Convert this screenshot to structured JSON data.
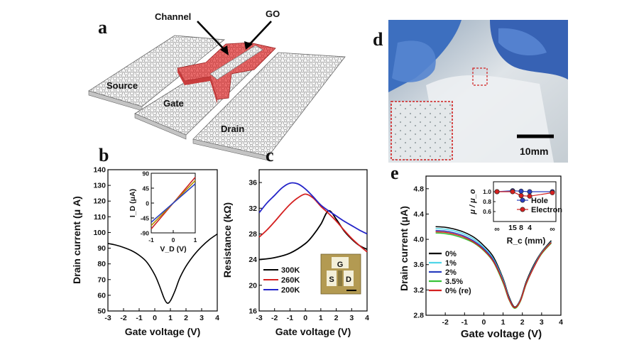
{
  "figure": {
    "panel_labels": [
      "a",
      "b",
      "c",
      "d",
      "e"
    ]
  },
  "panel_a": {
    "labels": {
      "channel": "Channel",
      "go": "GO",
      "source": "Source",
      "gate": "Gate",
      "drain": "Drain"
    },
    "colors": {
      "graphene": "#d8d8d8",
      "go": "#e05a5a"
    }
  },
  "panel_d": {
    "scale_bar": "10mm",
    "colors": {
      "glove": "#3a6fc0",
      "inset_border": "#d02020"
    }
  },
  "chart_data": [
    {
      "id": "b",
      "type": "line",
      "xlabel": "Gate voltage (V)",
      "ylabel": "Drain current (μ A)",
      "xlim": [
        -3,
        4
      ],
      "ylim": [
        50,
        140
      ],
      "xticks": [
        -3,
        -2,
        -1,
        0,
        1,
        2,
        3,
        4
      ],
      "yticks": [
        50,
        60,
        70,
        80,
        90,
        100,
        110,
        120,
        130,
        140
      ],
      "series": [
        {
          "color": "#000000",
          "x": [
            -3,
            -2.5,
            -2,
            -1.5,
            -1,
            -0.5,
            0,
            0.3,
            0.6,
            0.8,
            1.0,
            1.3,
            1.6,
            2,
            2.5,
            3,
            3.5,
            4
          ],
          "y": [
            93,
            92,
            90.5,
            88.5,
            85.5,
            81,
            73,
            66,
            58,
            55,
            56.5,
            63,
            71,
            78.5,
            85.5,
            91,
            95.5,
            99
          ]
        }
      ],
      "inset": {
        "xlabel": "V_D (V)",
        "ylabel": "I_D (μA)",
        "xlim": [
          -1,
          1
        ],
        "ylim": [
          -90,
          90
        ],
        "xticks": [
          -1,
          0,
          1
        ],
        "yticks": [
          -90,
          -45,
          0,
          45,
          90
        ],
        "ytick_labels": [
          "-90",
          "-45",
          "0",
          "45",
          "90"
        ],
        "series": [
          {
            "color": "#cc2222",
            "x": [
              -1,
              1
            ],
            "y": [
              -78,
              78
            ]
          },
          {
            "color": "#b38f00",
            "x": [
              -1,
              1
            ],
            "y": [
              -68,
              68
            ]
          },
          {
            "color": "#2a3fbf",
            "x": [
              -1,
              1
            ],
            "y": [
              -58,
              58
            ]
          }
        ]
      }
    },
    {
      "id": "c",
      "type": "line",
      "xlabel": "Gate voltage (V)",
      "ylabel": "Resistance (kΩ)",
      "xlim": [
        -3,
        4
      ],
      "ylim": [
        16,
        38
      ],
      "xticks": [
        -3,
        -2,
        -1,
        0,
        1,
        2,
        3,
        4
      ],
      "yticks": [
        16,
        20,
        24,
        28,
        32,
        36
      ],
      "legend_position": "bottom-left",
      "series": [
        {
          "name": "300K",
          "color": "#000000",
          "x": [
            -3,
            -2,
            -1,
            0,
            0.5,
            1,
            1.5,
            2,
            2.5,
            3,
            3.5,
            4
          ],
          "y": [
            24,
            24.3,
            25,
            26.5,
            27.8,
            29.5,
            31.6,
            30.3,
            28.5,
            27.2,
            26.2,
            25.6
          ]
        },
        {
          "name": "260K",
          "color": "#d42020",
          "x": [
            -3,
            -2.5,
            -2,
            -1.5,
            -1,
            -0.5,
            0,
            0.5,
            1,
            1.5,
            2,
            2.5,
            3,
            3.5,
            4
          ],
          "y": [
            27.5,
            28.6,
            29.9,
            31.3,
            32.6,
            33.6,
            34.2,
            33.6,
            32.3,
            31.2,
            30.0,
            28.6,
            27.3,
            26.2,
            25.2
          ]
        },
        {
          "name": "200K",
          "color": "#2424c8",
          "x": [
            -3,
            -2.5,
            -2,
            -1.5,
            -1,
            -0.5,
            0,
            0.5,
            1,
            1.5,
            2,
            2.5,
            3,
            3.5,
            4
          ],
          "y": [
            31.3,
            32.8,
            34.0,
            35.2,
            35.9,
            35.8,
            35.0,
            33.8,
            32.5,
            31.6,
            30.8,
            30.0,
            29.3,
            28.6,
            28.0
          ]
        }
      ],
      "inset_photo": {
        "labels": [
          "G",
          "S",
          "D"
        ],
        "colors": {
          "chip": "#b39a52",
          "pad": "#f3efd8"
        }
      }
    },
    {
      "id": "e",
      "type": "line",
      "xlabel": "Gate voltage (V)",
      "ylabel": "Drain current (μA)",
      "xlim": [
        -3,
        4
      ],
      "ylim": [
        2.8,
        5.0
      ],
      "xticks": [
        -2,
        -1,
        0,
        1,
        2,
        3,
        4
      ],
      "yticks": [
        2.8,
        3.2,
        3.6,
        4.0,
        4.4,
        4.8
      ],
      "ytick_labels": [
        "2.8",
        "3.2",
        "3.6",
        "4.0",
        "4.4",
        "4.8"
      ],
      "legend_position": "bottom-left",
      "series": [
        {
          "name": "0%",
          "color": "#000000",
          "x": [
            -2.5,
            -2,
            -1.5,
            -1,
            -0.5,
            0,
            0.5,
            1,
            1.3,
            1.6,
            1.9,
            2.2,
            2.6,
            3,
            3.5
          ],
          "y": [
            4.2,
            4.19,
            4.16,
            4.11,
            4.03,
            3.9,
            3.72,
            3.38,
            3.1,
            2.93,
            3.05,
            3.33,
            3.6,
            3.8,
            3.98
          ]
        },
        {
          "name": "1%",
          "color": "#4fd6e8",
          "x": [
            -2.5,
            -2,
            -1.5,
            -1,
            -0.5,
            0,
            0.5,
            1,
            1.3,
            1.6,
            1.9,
            2.2,
            2.6,
            3,
            3.5
          ],
          "y": [
            4.17,
            4.16,
            4.13,
            4.08,
            4.0,
            3.87,
            3.69,
            3.36,
            3.08,
            2.92,
            3.04,
            3.31,
            3.58,
            3.79,
            3.96
          ]
        },
        {
          "name": "2%",
          "color": "#2a3fbf",
          "x": [
            -2.5,
            -2,
            -1.5,
            -1,
            -0.5,
            0,
            0.5,
            1,
            1.3,
            1.6,
            1.9,
            2.2,
            2.6,
            3,
            3.5
          ],
          "y": [
            4.14,
            4.13,
            4.1,
            4.05,
            3.97,
            3.85,
            3.67,
            3.34,
            3.07,
            2.92,
            3.03,
            3.3,
            3.57,
            3.78,
            3.95
          ]
        },
        {
          "name": "3.5%",
          "color": "#38c238",
          "x": [
            -2.5,
            -2,
            -1.5,
            -1,
            -0.5,
            0,
            0.5,
            1,
            1.3,
            1.6,
            1.9,
            2.2,
            2.6,
            3,
            3.5
          ],
          "y": [
            4.1,
            4.09,
            4.06,
            4.01,
            3.94,
            3.82,
            3.64,
            3.31,
            3.05,
            2.91,
            3.02,
            3.29,
            3.56,
            3.77,
            3.94
          ]
        },
        {
          "name": "0% (re)",
          "color": "#d42020",
          "x": [
            -2.5,
            -2,
            -1.5,
            -1,
            -0.5,
            0,
            0.5,
            1,
            1.3,
            1.6,
            1.9,
            2.2,
            2.6,
            3,
            3.5
          ],
          "y": [
            4.12,
            4.11,
            4.08,
            4.03,
            3.95,
            3.83,
            3.65,
            3.33,
            3.06,
            2.92,
            3.03,
            3.3,
            3.56,
            3.78,
            3.95
          ]
        }
      ],
      "inset": {
        "xlabel": "R_c (mm)",
        "ylabel": "μ / μ_o",
        "ylim": [
          0.4,
          1.2
        ],
        "yticks": [
          0.6,
          0.8,
          1.0
        ],
        "ytick_labels": [
          "0.6",
          "0.8",
          "1.0"
        ],
        "categories": [
          "∞",
          "15",
          "8",
          "4",
          "∞"
        ],
        "legend_position": "bottom-right",
        "series": [
          {
            "name": "Hole",
            "color": "#2a3fbf",
            "values": [
              1.0,
              1.02,
              1.01,
              1.0,
              1.0
            ]
          },
          {
            "name": "Electron",
            "color": "#d42020",
            "values": [
              1.0,
              1.0,
              0.92,
              0.91,
              0.98
            ]
          }
        ]
      }
    }
  ]
}
